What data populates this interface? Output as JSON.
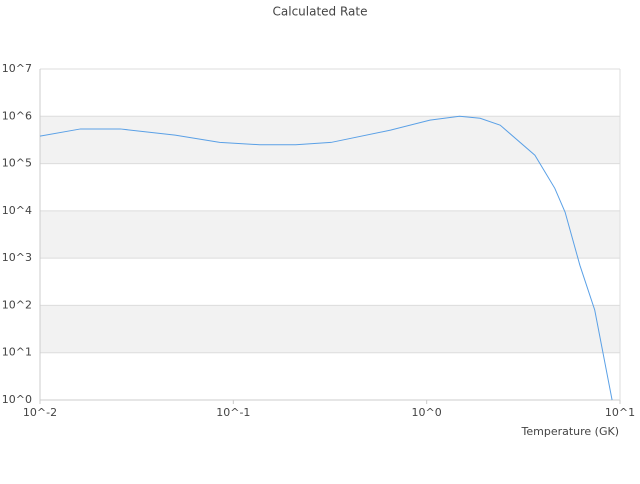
{
  "chart_data": {
    "type": "line",
    "title": "Calculated Rate",
    "x_label": "Temperature (GK)",
    "x": [
      0.01,
      0.0162,
      0.026,
      0.05,
      0.085,
      0.137,
      0.21,
      0.32,
      0.65,
      1.04,
      1.48,
      1.89,
      2.4,
      3.63,
      4.6,
      5.2,
      6.2,
      7.4,
      9.1
    ],
    "values": [
      380000,
      540000,
      540000,
      400000,
      280000,
      250000,
      250000,
      280000,
      510000,
      830000,
      1000000,
      910000,
      650000,
      150000,
      30000,
      9400,
      710,
      80,
      1
    ],
    "color": "#5aa0e6",
    "xscale": "log",
    "yscale": "log",
    "xlim": [
      0.01,
      10
    ],
    "ylim": [
      1,
      10000000
    ],
    "xticks": [
      {
        "value": 0.01,
        "label": "10^-2"
      },
      {
        "value": 0.1,
        "label": "10^-1"
      },
      {
        "value": 1,
        "label": "10^0"
      },
      {
        "value": 10,
        "label": "10^1"
      }
    ],
    "yticks": [
      {
        "value": 1,
        "label": "10^0"
      },
      {
        "value": 10,
        "label": "10^1"
      },
      {
        "value": 100,
        "label": "10^2"
      },
      {
        "value": 1000,
        "label": "10^3"
      },
      {
        "value": 10000,
        "label": "10^4"
      },
      {
        "value": 100000,
        "label": "10^5"
      },
      {
        "value": 1000000,
        "label": "10^6"
      },
      {
        "value": 10000000,
        "label": "10^7"
      }
    ],
    "grid": true,
    "alternating_bands": true
  }
}
